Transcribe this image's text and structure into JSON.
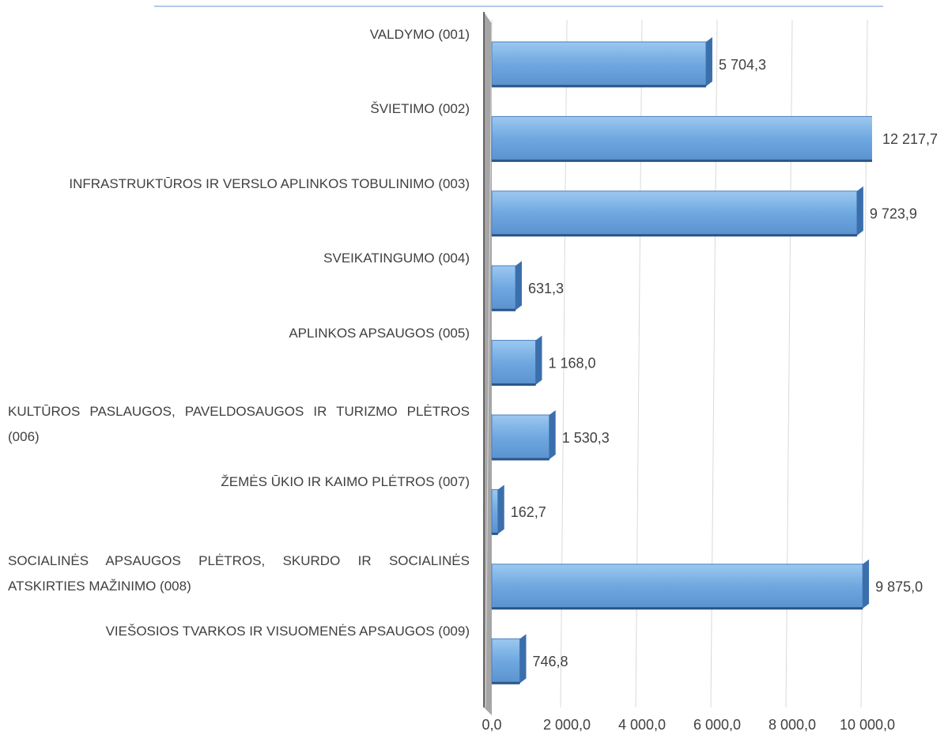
{
  "chart_data": {
    "type": "bar3d-horizontal",
    "categories": [
      "VALDYMO (001)",
      "ŠVIETIMO (002)",
      "INFRASTRUKTŪROS IR VERSLO APLINKOS TOBULINIMO (003)",
      "SVEIKATINGUMO (004)",
      "APLINKOS APSAUGOS (005)",
      "KULTŪROS PASLAUGOS, PAVELDOSAUGOS IR TURIZMO PLĖTROS (006)",
      "ŽEMĖS ŪKIO IR KAIMO PLĖTROS (007)",
      "SOCIALINĖS APSAUGOS PLĖTROS, SKURDO IR SOCIALINĖS ATSKIRTIES MAŽINIMO (008)",
      "VIEŠOSIOS TVARKOS IR VISUOMENĖS APSAUGOS (009)"
    ],
    "values": [
      5704.3,
      12217.7,
      9723.9,
      631.3,
      1168.0,
      1530.3,
      162.7,
      9875.0,
      746.8
    ],
    "value_labels": [
      "5 704,3",
      "12 217,7",
      "9 723,9",
      "631,3",
      "1 168,0",
      "1 530,3",
      "162,7",
      "9 875,0",
      "746,8"
    ],
    "color": "#5b9bd5",
    "xlim": [
      0,
      10000
    ],
    "xticks": [
      {
        "value": 0,
        "label": "0,0"
      },
      {
        "value": 2000,
        "label": "2 000,0"
      },
      {
        "value": 4000,
        "label": "4 000,0"
      },
      {
        "value": 6000,
        "label": "6 000,0"
      },
      {
        "value": 8000,
        "label": "8 000,0"
      },
      {
        "value": 10000,
        "label": "10 000,0"
      }
    ],
    "grid": true
  }
}
